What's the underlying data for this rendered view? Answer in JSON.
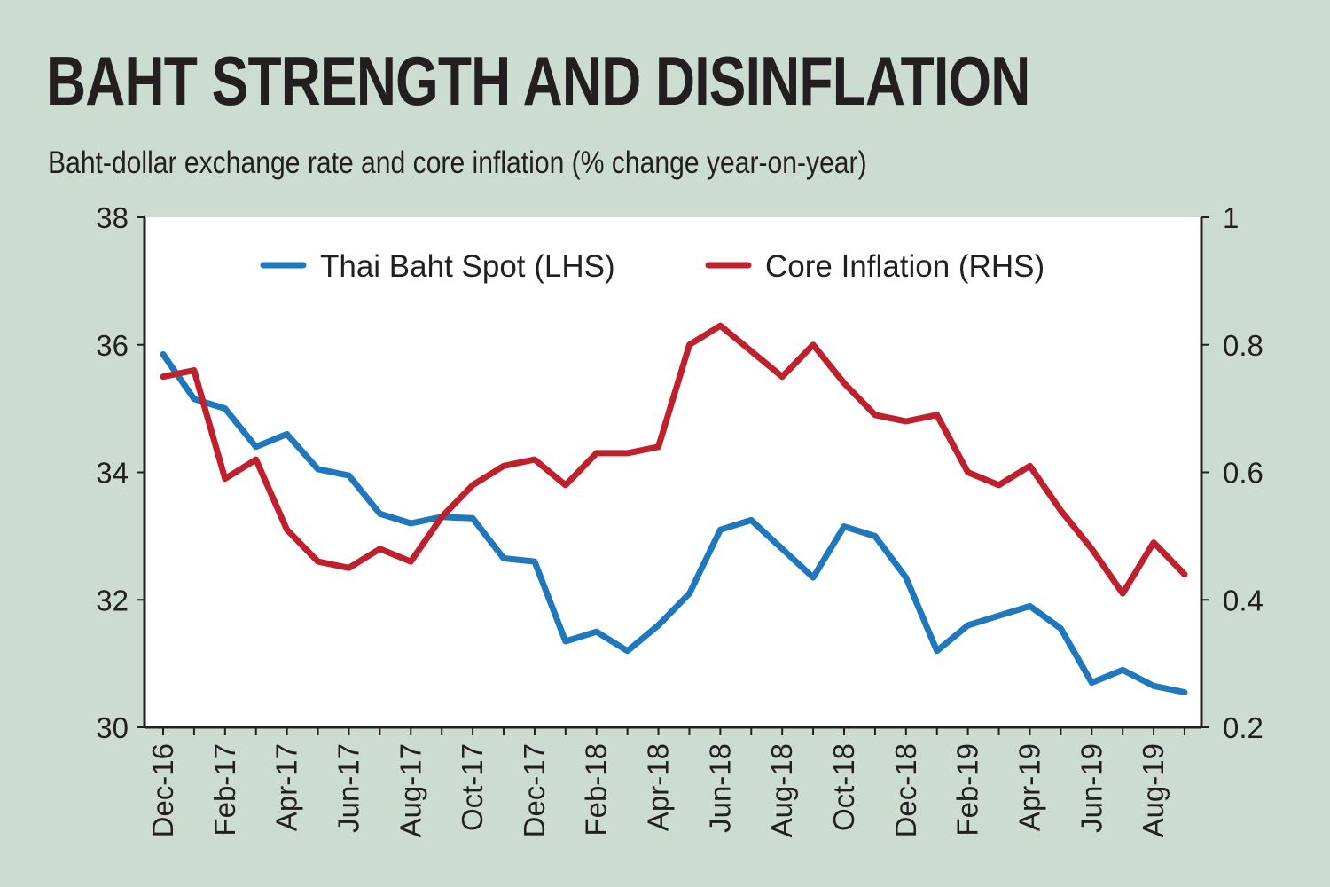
{
  "title": "BAHT STRENGTH AND DISINFLATION",
  "subtitle": "Baht-dollar exchange rate and core inflation (% change year-on-year)",
  "colors": {
    "background": "#cddcd0",
    "plot": "#ffffff",
    "baht": "#1f78be",
    "core": "#c0202e",
    "axis": "#231f20"
  },
  "chart_data": {
    "type": "line",
    "title": "BAHT STRENGTH AND DISINFLATION",
    "subtitle": "Baht-dollar exchange rate and core inflation (% change year-on-year)",
    "x": [
      "Dec-16",
      "Jan-17",
      "Feb-17",
      "Mar-17",
      "Apr-17",
      "May-17",
      "Jun-17",
      "Jul-17",
      "Aug-17",
      "Sep-17",
      "Oct-17",
      "Nov-17",
      "Dec-17",
      "Jan-18",
      "Feb-18",
      "Mar-18",
      "Apr-18",
      "May-18",
      "Jun-18",
      "Jul-18",
      "Aug-18",
      "Sep-18",
      "Oct-18",
      "Nov-18",
      "Dec-18",
      "Jan-19",
      "Feb-19",
      "Mar-19",
      "Apr-19",
      "May-19",
      "Jun-19",
      "Jul-19",
      "Aug-19",
      "Sep-19"
    ],
    "x_tick_labels": [
      "Dec-16",
      "Feb-17",
      "Apr-17",
      "Jun-17",
      "Aug-17",
      "Oct-17",
      "Dec-17",
      "Feb-18",
      "Apr-18",
      "Jun-18",
      "Aug-18",
      "Oct-18",
      "Dec-18",
      "Feb-19",
      "Apr-19",
      "Jun-19",
      "Aug-19"
    ],
    "y_left": {
      "ylim": [
        30,
        38
      ],
      "ticks": [
        "30",
        "32",
        "34",
        "36",
        "38"
      ]
    },
    "y_right": {
      "ylim": [
        0.2,
        1.0
      ],
      "ticks": [
        "0.2",
        "0.4",
        "0.6",
        "0.8",
        "1"
      ]
    },
    "legend_position": "top",
    "series": [
      {
        "name": "Thai Baht Spot (LHS)",
        "axis": "left",
        "color": "#1f78be",
        "values": [
          35.85,
          35.15,
          35.0,
          34.4,
          34.6,
          34.05,
          33.95,
          33.35,
          33.2,
          33.3,
          33.28,
          32.65,
          32.6,
          31.35,
          31.5,
          31.2,
          31.6,
          32.1,
          33.1,
          33.25,
          32.8,
          32.35,
          33.15,
          33.0,
          32.35,
          31.2,
          31.6,
          31.75,
          31.9,
          31.55,
          30.7,
          30.9,
          30.65,
          30.55
        ]
      },
      {
        "name": "Core Inflation (RHS)",
        "axis": "right",
        "color": "#c0202e",
        "values": [
          0.75,
          0.76,
          0.59,
          0.62,
          0.51,
          0.46,
          0.45,
          0.48,
          0.46,
          0.53,
          0.58,
          0.61,
          0.62,
          0.58,
          0.63,
          0.63,
          0.64,
          0.8,
          0.83,
          0.79,
          0.75,
          0.8,
          0.74,
          0.69,
          0.68,
          0.69,
          0.6,
          0.58,
          0.61,
          0.54,
          0.48,
          0.41,
          0.49,
          0.44
        ]
      }
    ]
  }
}
